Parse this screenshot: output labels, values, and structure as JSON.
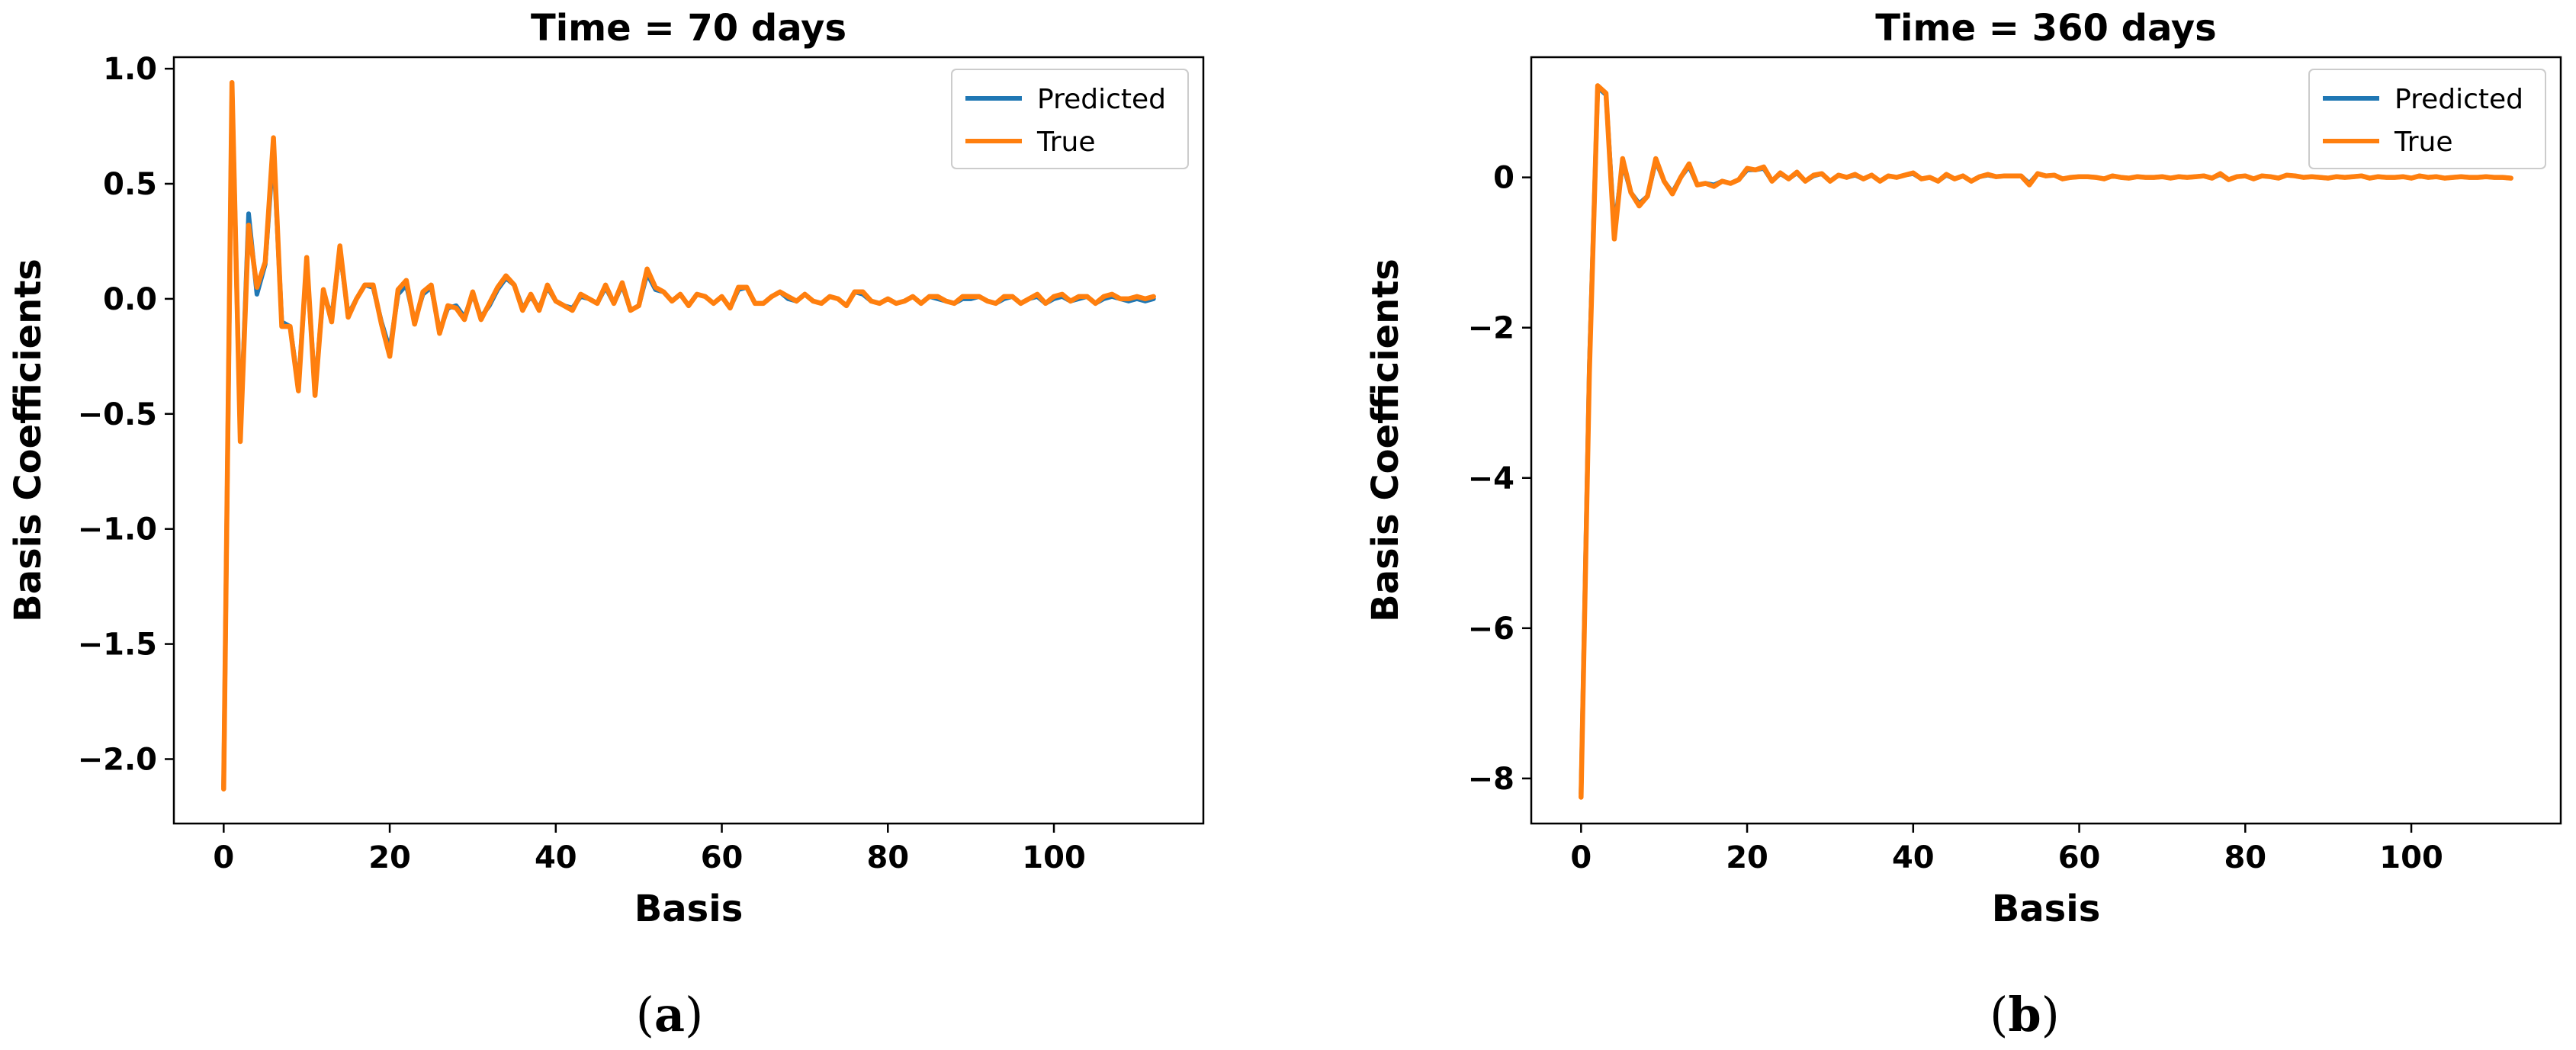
{
  "chart_data": [
    {
      "type": "line",
      "title": "Time = 70 days",
      "xlabel": "Basis",
      "ylabel": "Basis Coefficients",
      "caption_letter": "a",
      "xlim": [
        -6,
        118
      ],
      "ylim": [
        -2.28,
        1.05
      ],
      "xticks": [
        0,
        20,
        40,
        60,
        80,
        100
      ],
      "xtick_labels": [
        "0",
        "20",
        "40",
        "60",
        "80",
        "100"
      ],
      "yticks": [
        1.0,
        0.5,
        0.0,
        -0.5,
        -1.0,
        -1.5,
        -2.0
      ],
      "ytick_labels": [
        "1.0",
        "0.5",
        "0.0",
        "−0.5",
        "−1.0",
        "−1.5",
        "−2.0"
      ],
      "legend_position": "top-right",
      "series": [
        {
          "name": "Predicted",
          "color": "#1f77b4",
          "x": [
            0,
            1,
            2,
            3,
            4,
            5,
            6,
            7,
            8,
            9,
            10,
            11,
            12,
            13,
            14,
            15,
            16,
            17,
            18,
            19,
            20,
            21,
            22,
            23,
            24,
            25,
            26,
            27,
            28,
            29,
            30,
            31,
            32,
            33,
            34,
            35,
            36,
            37,
            38,
            39,
            40,
            41,
            42,
            43,
            44,
            45,
            46,
            47,
            48,
            49,
            50,
            51,
            52,
            53,
            54,
            55,
            56,
            57,
            58,
            59,
            60,
            61,
            62,
            63,
            64,
            65,
            66,
            67,
            68,
            69,
            70,
            71,
            72,
            73,
            74,
            75,
            76,
            77,
            78,
            79,
            80,
            81,
            82,
            83,
            84,
            85,
            86,
            87,
            88,
            89,
            90,
            91,
            92,
            93,
            94,
            95,
            96,
            97,
            98,
            99,
            100,
            101,
            102,
            103,
            104,
            105,
            106,
            107,
            108,
            109,
            110,
            111,
            112
          ],
          "y": [
            -2.12,
            0.92,
            -0.6,
            0.37,
            0.02,
            0.15,
            0.65,
            -0.1,
            -0.12,
            -0.38,
            0.16,
            -0.4,
            0.03,
            -0.08,
            0.21,
            -0.07,
            0.0,
            0.06,
            0.05,
            -0.1,
            -0.22,
            0.02,
            0.06,
            -0.1,
            0.02,
            0.05,
            -0.14,
            -0.04,
            -0.03,
            -0.08,
            0.02,
            -0.08,
            -0.03,
            0.04,
            0.09,
            0.06,
            -0.04,
            0.01,
            -0.04,
            0.05,
            -0.01,
            -0.03,
            -0.04,
            0.01,
            0.0,
            -0.02,
            0.05,
            -0.02,
            0.06,
            -0.05,
            -0.03,
            0.11,
            0.04,
            0.03,
            -0.01,
            0.02,
            -0.03,
            0.02,
            0.01,
            -0.02,
            0.01,
            -0.04,
            0.04,
            0.05,
            -0.02,
            -0.02,
            0.01,
            0.03,
            0.0,
            -0.01,
            0.02,
            -0.01,
            -0.02,
            0.01,
            0.0,
            -0.03,
            0.03,
            0.02,
            -0.01,
            -0.02,
            0.0,
            -0.02,
            -0.01,
            0.01,
            -0.02,
            0.01,
            0.0,
            -0.01,
            -0.02,
            0.0,
            0.0,
            0.01,
            -0.01,
            -0.02,
            0.0,
            0.01,
            -0.02,
            0.0,
            0.01,
            -0.02,
            0.0,
            0.01,
            -0.01,
            0.0,
            0.01,
            -0.02,
            0.0,
            0.01,
            0.0,
            -0.01,
            0.0,
            -0.01,
            0.0
          ]
        },
        {
          "name": "True",
          "color": "#ff7f0e",
          "x": [
            0,
            1,
            2,
            3,
            4,
            5,
            6,
            7,
            8,
            9,
            10,
            11,
            12,
            13,
            14,
            15,
            16,
            17,
            18,
            19,
            20,
            21,
            22,
            23,
            24,
            25,
            26,
            27,
            28,
            29,
            30,
            31,
            32,
            33,
            34,
            35,
            36,
            37,
            38,
            39,
            40,
            41,
            42,
            43,
            44,
            45,
            46,
            47,
            48,
            49,
            50,
            51,
            52,
            53,
            54,
            55,
            56,
            57,
            58,
            59,
            60,
            61,
            62,
            63,
            64,
            65,
            66,
            67,
            68,
            69,
            70,
            71,
            72,
            73,
            74,
            75,
            76,
            77,
            78,
            79,
            80,
            81,
            82,
            83,
            84,
            85,
            86,
            87,
            88,
            89,
            90,
            91,
            92,
            93,
            94,
            95,
            96,
            97,
            98,
            99,
            100,
            101,
            102,
            103,
            104,
            105,
            106,
            107,
            108,
            109,
            110,
            111,
            112
          ],
          "y": [
            -2.13,
            0.94,
            -0.62,
            0.32,
            0.05,
            0.16,
            0.7,
            -0.12,
            -0.12,
            -0.4,
            0.18,
            -0.42,
            0.04,
            -0.1,
            0.23,
            -0.08,
            0.0,
            0.06,
            0.06,
            -0.11,
            -0.25,
            0.04,
            0.08,
            -0.11,
            0.03,
            0.06,
            -0.15,
            -0.03,
            -0.04,
            -0.09,
            0.03,
            -0.09,
            -0.02,
            0.05,
            0.1,
            0.06,
            -0.05,
            0.02,
            -0.05,
            0.06,
            -0.01,
            -0.03,
            -0.05,
            0.02,
            0.0,
            -0.02,
            0.06,
            -0.02,
            0.07,
            -0.05,
            -0.03,
            0.13,
            0.05,
            0.03,
            -0.01,
            0.02,
            -0.03,
            0.02,
            0.01,
            -0.02,
            0.01,
            -0.04,
            0.05,
            0.05,
            -0.02,
            -0.02,
            0.01,
            0.03,
            0.01,
            -0.01,
            0.02,
            -0.01,
            -0.02,
            0.01,
            0.0,
            -0.03,
            0.03,
            0.03,
            -0.01,
            -0.02,
            0.0,
            -0.02,
            -0.01,
            0.01,
            -0.02,
            0.01,
            0.01,
            -0.01,
            -0.02,
            0.01,
            0.01,
            0.01,
            -0.01,
            -0.02,
            0.01,
            0.01,
            -0.02,
            0.0,
            0.02,
            -0.02,
            0.01,
            0.02,
            -0.01,
            0.01,
            0.01,
            -0.02,
            0.01,
            0.02,
            0.0,
            0.0,
            0.01,
            0.0,
            0.01
          ]
        }
      ]
    },
    {
      "type": "line",
      "title": "Time = 360 days",
      "xlabel": "Basis",
      "ylabel": "Basis Coefficients",
      "caption_letter": "b",
      "xlim": [
        -6,
        118
      ],
      "ylim": [
        -8.6,
        1.6
      ],
      "xticks": [
        0,
        20,
        40,
        60,
        80,
        100
      ],
      "xtick_labels": [
        "0",
        "20",
        "40",
        "60",
        "80",
        "100"
      ],
      "yticks": [
        0,
        -2,
        -4,
        -6,
        -8
      ],
      "ytick_labels": [
        "0",
        "−2",
        "−4",
        "−6",
        "−8"
      ],
      "legend_position": "top-right",
      "series": [
        {
          "name": "Predicted",
          "color": "#1f77b4",
          "x": [
            0,
            1,
            2,
            3,
            4,
            5,
            6,
            7,
            8,
            9,
            10,
            11,
            12,
            13,
            14,
            15,
            16,
            17,
            18,
            19,
            20,
            21,
            22,
            23,
            24,
            25,
            26,
            27,
            28,
            29,
            30,
            31,
            32,
            33,
            34,
            35,
            36,
            37,
            38,
            39,
            40,
            41,
            42,
            43,
            44,
            45,
            46,
            47,
            48,
            49,
            50,
            51,
            52,
            53,
            54,
            55,
            56,
            57,
            58,
            59,
            60,
            61,
            62,
            63,
            64,
            65,
            66,
            67,
            68,
            69,
            70,
            71,
            72,
            73,
            74,
            75,
            76,
            77,
            78,
            79,
            80,
            81,
            82,
            83,
            84,
            85,
            86,
            87,
            88,
            89,
            90,
            91,
            92,
            93,
            94,
            95,
            96,
            97,
            98,
            99,
            100,
            101,
            102,
            103,
            104,
            105,
            106,
            107,
            108,
            109,
            110,
            111,
            112
          ],
          "y": [
            -8.2,
            -2.5,
            1.2,
            1.1,
            -0.7,
            0.2,
            -0.2,
            -0.35,
            -0.25,
            0.22,
            -0.05,
            -0.2,
            0.0,
            0.15,
            -0.1,
            -0.08,
            -0.1,
            -0.05,
            -0.08,
            -0.03,
            0.1,
            0.1,
            0.12,
            -0.05,
            0.05,
            -0.02,
            0.06,
            -0.05,
            0.02,
            0.05,
            -0.05,
            0.03,
            0.0,
            0.03,
            -0.02,
            0.03,
            -0.05,
            0.02,
            0.0,
            0.03,
            0.05,
            -0.02,
            0.0,
            -0.05,
            0.03,
            -0.02,
            0.02,
            -0.05,
            0.01,
            0.03,
            0.01,
            0.02,
            0.02,
            0.02,
            -0.08,
            0.05,
            0.02,
            0.03,
            -0.02,
            0.0,
            0.01,
            0.01,
            0.0,
            -0.02,
            0.02,
            0.0,
            -0.01,
            0.01,
            0.0,
            0.0,
            0.01,
            -0.01,
            0.01,
            0.0,
            0.01,
            0.02,
            -0.01,
            0.04,
            -0.03,
            0.01,
            0.02,
            -0.02,
            0.02,
            0.01,
            -0.01,
            0.03,
            0.02,
            0.0,
            0.01,
            0.0,
            -0.01,
            0.01,
            0.0,
            0.01,
            0.02,
            -0.01,
            0.01,
            0.0,
            0.0,
            0.01,
            -0.01,
            0.02,
            0.0,
            0.01,
            -0.01,
            0.0,
            0.01,
            0.0,
            0.0,
            0.01,
            0.0,
            0.0,
            -0.01
          ]
        },
        {
          "name": "True",
          "color": "#ff7f0e",
          "x": [
            0,
            1,
            2,
            3,
            4,
            5,
            6,
            7,
            8,
            9,
            10,
            11,
            12,
            13,
            14,
            15,
            16,
            17,
            18,
            19,
            20,
            21,
            22,
            23,
            24,
            25,
            26,
            27,
            28,
            29,
            30,
            31,
            32,
            33,
            34,
            35,
            36,
            37,
            38,
            39,
            40,
            41,
            42,
            43,
            44,
            45,
            46,
            47,
            48,
            49,
            50,
            51,
            52,
            53,
            54,
            55,
            56,
            57,
            58,
            59,
            60,
            61,
            62,
            63,
            64,
            65,
            66,
            67,
            68,
            69,
            70,
            71,
            72,
            73,
            74,
            75,
            76,
            77,
            78,
            79,
            80,
            81,
            82,
            83,
            84,
            85,
            86,
            87,
            88,
            89,
            90,
            91,
            92,
            93,
            94,
            95,
            96,
            97,
            98,
            99,
            100,
            101,
            102,
            103,
            104,
            105,
            106,
            107,
            108,
            109,
            110,
            111,
            112
          ],
          "y": [
            -8.25,
            -2.6,
            1.22,
            1.12,
            -0.82,
            0.25,
            -0.2,
            -0.38,
            -0.25,
            0.25,
            -0.05,
            -0.22,
            0.0,
            0.18,
            -0.1,
            -0.08,
            -0.12,
            -0.05,
            -0.08,
            -0.03,
            0.12,
            0.1,
            0.14,
            -0.05,
            0.06,
            -0.02,
            0.07,
            -0.05,
            0.03,
            0.05,
            -0.05,
            0.03,
            0.0,
            0.04,
            -0.02,
            0.03,
            -0.05,
            0.02,
            0.0,
            0.03,
            0.06,
            -0.02,
            0.0,
            -0.05,
            0.04,
            -0.02,
            0.02,
            -0.05,
            0.01,
            0.04,
            0.01,
            0.02,
            0.02,
            0.02,
            -0.1,
            0.05,
            0.02,
            0.03,
            -0.02,
            0.0,
            0.01,
            0.01,
            0.0,
            -0.02,
            0.02,
            0.0,
            -0.01,
            0.01,
            0.0,
            0.0,
            0.01,
            -0.01,
            0.01,
            0.0,
            0.01,
            0.02,
            -0.01,
            0.05,
            -0.03,
            0.01,
            0.02,
            -0.02,
            0.02,
            0.01,
            -0.01,
            0.03,
            0.02,
            0.0,
            0.01,
            0.0,
            -0.01,
            0.01,
            0.0,
            0.01,
            0.02,
            -0.01,
            0.01,
            0.0,
            0.0,
            0.01,
            -0.01,
            0.02,
            0.0,
            0.01,
            -0.01,
            0.0,
            0.01,
            0.0,
            0.0,
            0.01,
            0.0,
            0.0,
            -0.01
          ]
        }
      ]
    }
  ]
}
